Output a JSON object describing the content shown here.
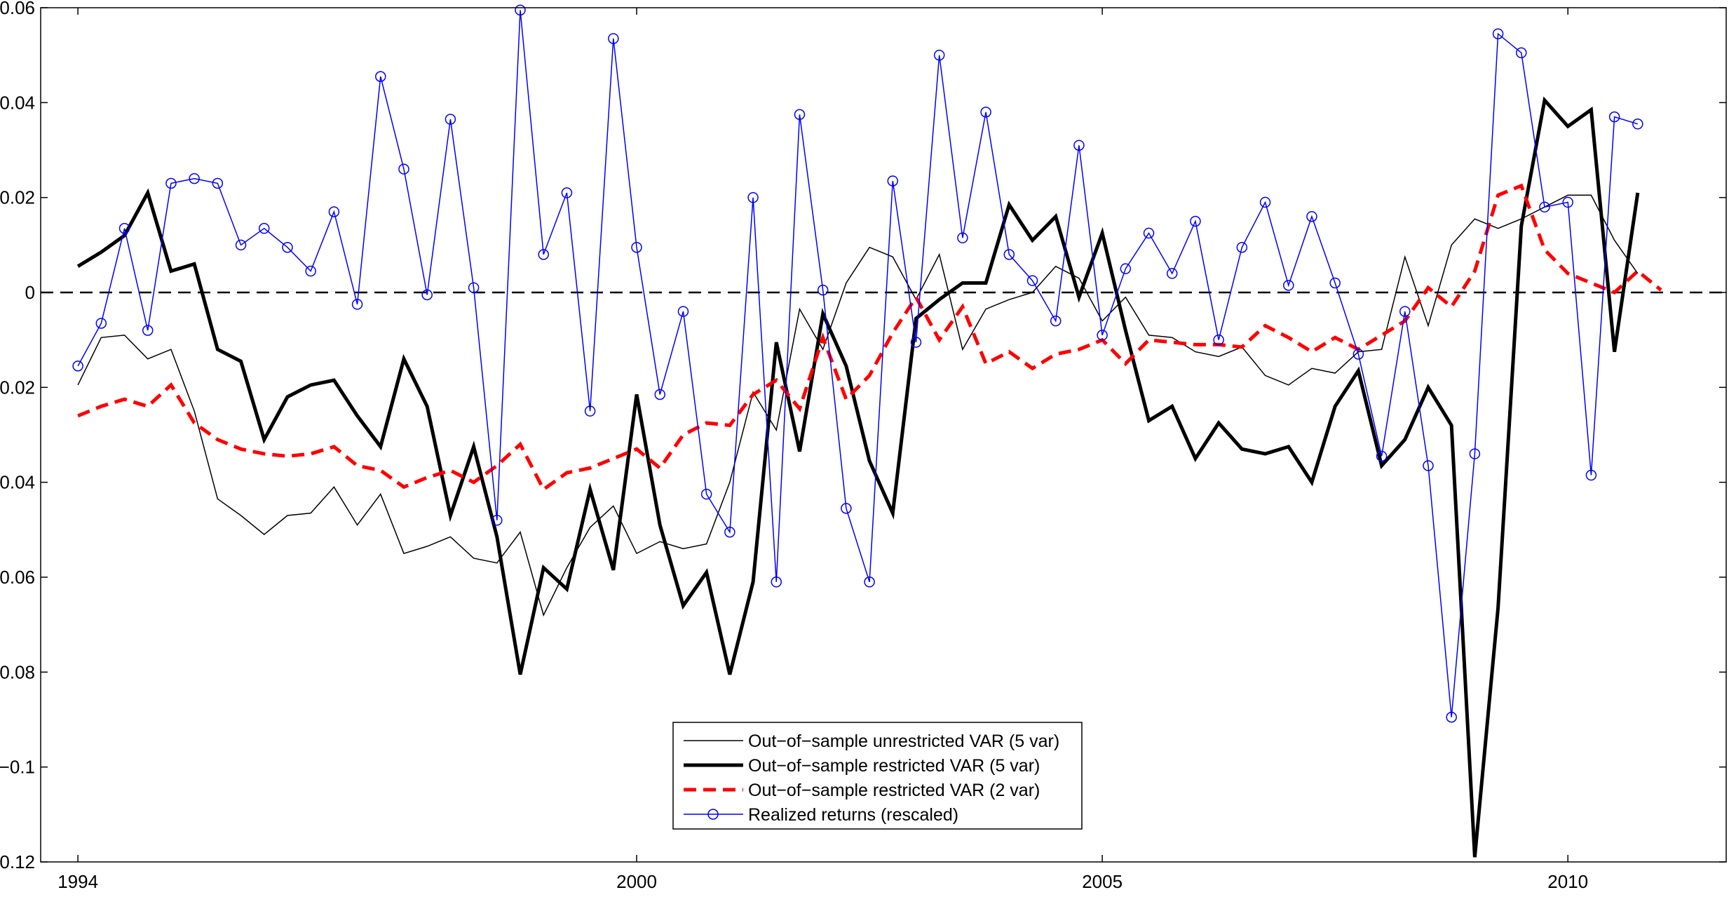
{
  "chart_data": {
    "type": "line",
    "title": "",
    "xlabel": "",
    "ylabel": "",
    "xlim": [
      1993.6,
      2011.7
    ],
    "ylim": [
      -0.12,
      0.06
    ],
    "grid": false,
    "legend_position": "bottom-center",
    "zero_line": {
      "y": 0,
      "style": "dashed",
      "color": "#000000"
    },
    "x_ticks": [
      1994,
      2000,
      2005,
      2010
    ],
    "x_tick_labels": [
      "1994",
      "2000",
      "2005",
      "2010"
    ],
    "y_ticks": [
      0.06,
      0.04,
      0.02,
      0,
      -0.02,
      -0.04,
      -0.06,
      -0.08,
      -0.1,
      -0.12
    ],
    "y_tick_labels": [
      "0.06",
      "0.04",
      "0.02",
      "0",
      "−0.02",
      "−0.04",
      "−0.06",
      "−0.08",
      "−0.1",
      "−0.12"
    ],
    "x_start": 1994.0,
    "x_step": 0.25,
    "series": [
      {
        "name": "Out−of−sample unrestricted VAR (5 var)",
        "color": "#000000",
        "style": "thin-solid",
        "values": [
          -0.0195,
          -0.0095,
          -0.009,
          -0.014,
          -0.012,
          -0.025,
          -0.0435,
          -0.047,
          -0.051,
          -0.047,
          -0.0465,
          -0.041,
          -0.049,
          -0.0425,
          -0.055,
          -0.0535,
          -0.0515,
          -0.056,
          -0.057,
          -0.0505,
          -0.068,
          -0.058,
          -0.0495,
          -0.045,
          -0.055,
          -0.0525,
          -0.054,
          -0.053,
          -0.04,
          -0.021,
          -0.029,
          -0.0035,
          -0.012,
          0.002,
          0.0095,
          0.0075,
          -0.0015,
          0.008,
          -0.012,
          -0.0035,
          -0.0015,
          0.0,
          0.0055,
          0.003,
          -0.006,
          -0.001,
          -0.009,
          -0.0095,
          -0.0125,
          -0.0135,
          -0.0115,
          -0.0175,
          -0.0195,
          -0.016,
          -0.017,
          -0.0125,
          -0.012,
          0.0075,
          -0.007,
          0.01,
          0.0155,
          0.0135,
          0.0155,
          0.018,
          0.0205,
          0.0205,
          0.011,
          0.004
        ]
      },
      {
        "name": "Out−of−sample restricted VAR (5 var)",
        "color": "#000000",
        "style": "thick-solid",
        "values": [
          0.0055,
          0.0085,
          0.012,
          0.021,
          0.0045,
          0.006,
          -0.012,
          -0.0145,
          -0.031,
          -0.022,
          -0.0195,
          -0.0185,
          -0.026,
          -0.0325,
          -0.014,
          -0.024,
          -0.047,
          -0.0325,
          -0.0515,
          -0.0805,
          -0.058,
          -0.0625,
          -0.0415,
          -0.0585,
          -0.0215,
          -0.049,
          -0.066,
          -0.059,
          -0.0805,
          -0.061,
          -0.0105,
          -0.0335,
          -0.0045,
          -0.0155,
          -0.0355,
          -0.0465,
          -0.0055,
          -0.0015,
          0.002,
          0.002,
          0.0185,
          0.011,
          0.016,
          -0.001,
          0.0125,
          -0.008,
          -0.027,
          -0.024,
          -0.035,
          -0.0275,
          -0.033,
          -0.034,
          -0.0325,
          -0.04,
          -0.024,
          -0.0165,
          -0.0365,
          -0.031,
          -0.02,
          -0.028,
          -0.119,
          -0.0665,
          0.014,
          0.0405,
          0.035,
          0.0385,
          -0.0125,
          0.021
        ]
      },
      {
        "name": "Out−of−sample restricted VAR (2 var)",
        "color": "#ff0000",
        "style": "thick-dashed",
        "values": [
          -0.026,
          -0.024,
          -0.0225,
          -0.024,
          -0.0195,
          -0.0275,
          -0.031,
          -0.033,
          -0.034,
          -0.0345,
          -0.034,
          -0.0325,
          -0.0365,
          -0.0375,
          -0.041,
          -0.039,
          -0.0375,
          -0.04,
          -0.0365,
          -0.032,
          -0.0415,
          -0.038,
          -0.037,
          -0.035,
          -0.033,
          -0.037,
          -0.03,
          -0.0275,
          -0.028,
          -0.0215,
          -0.0185,
          -0.0245,
          -0.0095,
          -0.0225,
          -0.0175,
          -0.0085,
          -0.001,
          -0.01,
          -0.003,
          -0.015,
          -0.0125,
          -0.016,
          -0.013,
          -0.012,
          -0.01,
          -0.015,
          -0.01,
          -0.0105,
          -0.011,
          -0.011,
          -0.0115,
          -0.007,
          -0.0095,
          -0.0125,
          -0.0095,
          -0.012,
          -0.009,
          -0.006,
          0.001,
          -0.003,
          0.0045,
          0.0205,
          0.0225,
          0.009,
          0.004,
          0.002,
          0.0,
          0.0045,
          0.0005
        ]
      },
      {
        "name": "Realized returns (rescaled)",
        "color": "#0000ff",
        "style": "thin-solid-circle-markers",
        "values": [
          -0.0155,
          -0.0065,
          0.0135,
          -0.008,
          0.023,
          0.024,
          0.023,
          0.01,
          0.0135,
          0.0095,
          0.0045,
          0.017,
          -0.0025,
          0.0455,
          0.026,
          -0.0005,
          0.0365,
          0.001,
          -0.048,
          0.0595,
          0.008,
          0.021,
          -0.025,
          0.0535,
          0.0095,
          -0.0215,
          -0.004,
          -0.0425,
          -0.0505,
          0.02,
          -0.061,
          0.0375,
          0.0005,
          -0.0455,
          -0.061,
          0.0235,
          -0.0105,
          0.05,
          0.0115,
          0.038,
          0.008,
          0.0025,
          -0.006,
          0.031,
          -0.009,
          0.005,
          0.0125,
          0.004,
          0.015,
          -0.01,
          0.0095,
          0.019,
          0.0015,
          0.016,
          0.002,
          -0.013,
          -0.0345,
          -0.004,
          -0.0365,
          -0.0895,
          -0.034,
          0.0545,
          0.0505,
          0.018,
          0.019,
          -0.0385,
          0.037,
          0.0355
        ]
      }
    ]
  }
}
